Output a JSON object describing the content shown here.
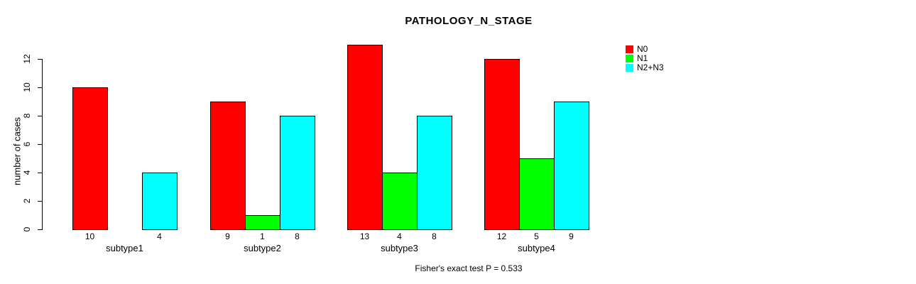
{
  "title": "PATHOLOGY_N_STAGE",
  "caption": "Fisher's exact test P = 0.533",
  "colors": {
    "n0": "#ff0000",
    "n1": "#00ff00",
    "n2n3": "#00ffff",
    "axis": "#000000"
  },
  "legend": {
    "items": [
      {
        "label": "N0",
        "color": "#ff0000"
      },
      {
        "label": "N1",
        "color": "#00ff00"
      },
      {
        "label": "N2+N3",
        "color": "#00ffff"
      }
    ]
  },
  "chart_data": {
    "type": "bar",
    "grouped": true,
    "title": "PATHOLOGY_N_STAGE",
    "xlabel": "",
    "ylabel": "number of cases",
    "categories": [
      "subtype1",
      "subtype2",
      "subtype3",
      "subtype4"
    ],
    "series": [
      {
        "name": "N0",
        "color": "#ff0000",
        "values": [
          10,
          9,
          13,
          12
        ]
      },
      {
        "name": "N1",
        "color": "#00ff00",
        "values": [
          0,
          1,
          4,
          5
        ]
      },
      {
        "name": "N2+N3",
        "color": "#00ffff",
        "values": [
          4,
          8,
          8,
          9
        ]
      }
    ],
    "bar_value_labels": [
      [
        10,
        null,
        4
      ],
      [
        9,
        1,
        8
      ],
      [
        13,
        4,
        8
      ],
      [
        12,
        5,
        9
      ]
    ],
    "yticks": [
      0,
      2,
      4,
      6,
      8,
      10,
      12
    ],
    "ylim": [
      0,
      13
    ],
    "grid": false,
    "legend_position": "right",
    "annotation": "Fisher's exact test P = 0.533"
  }
}
